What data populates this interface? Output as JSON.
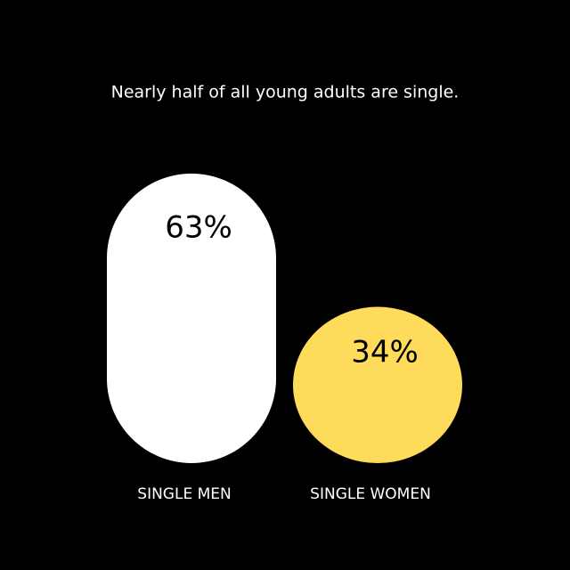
{
  "chart_data": {
    "type": "bar",
    "title": "Nearly half of all young adults are single.",
    "categories": [
      "SINGLE MEN",
      "SINGLE WOMEN"
    ],
    "values": [
      63,
      34
    ],
    "value_labels": [
      "63%",
      "34%"
    ],
    "colors": [
      "#ffffff",
      "#fedb5a"
    ]
  }
}
